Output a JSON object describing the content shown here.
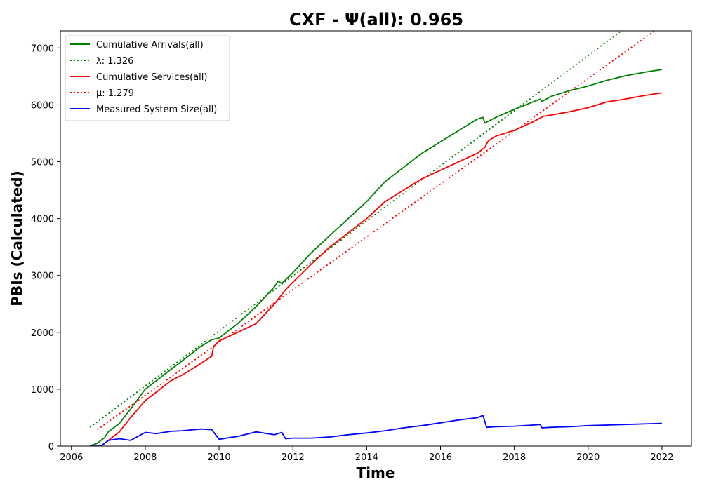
{
  "chart_data": {
    "type": "line",
    "title": "CXF -  Ψ(all): 0.965",
    "xlabel": "Time",
    "ylabel": "PBIs (Calculated)",
    "xlim": [
      2005.7,
      2022.8
    ],
    "ylim": [
      0,
      7300
    ],
    "x_ticks": [
      "2006",
      "2008",
      "2010",
      "2012",
      "2014",
      "2016",
      "2018",
      "2020",
      "2022"
    ],
    "y_ticks": [
      "0",
      "1000",
      "2000",
      "3000",
      "4000",
      "5000",
      "6000",
      "7000"
    ],
    "legend_position": "upper-left",
    "series": [
      {
        "name": "Cumulative Arrivals(all)",
        "style": "solid",
        "color": "#008000",
        "x": [
          2006.5,
          2006.7,
          2006.9,
          2007.0,
          2007.3,
          2007.6,
          2008.0,
          2008.3,
          2008.7,
          2009.0,
          2009.5,
          2009.8,
          2010.0,
          2010.5,
          2011.0,
          2011.5,
          2011.6,
          2011.7,
          2012.0,
          2012.5,
          2013.0,
          2013.5,
          2014.0,
          2014.5,
          2015.0,
          2015.5,
          2016.0,
          2016.5,
          2017.0,
          2017.15,
          2017.2,
          2017.5,
          2018.0,
          2018.5,
          2018.7,
          2018.75,
          2019.0,
          2019.5,
          2020.0,
          2020.5,
          2021.0,
          2021.5,
          2022.0
        ],
        "y": [
          0,
          50,
          150,
          250,
          400,
          650,
          1000,
          1150,
          1350,
          1500,
          1750,
          1870,
          1900,
          2150,
          2450,
          2800,
          2900,
          2860,
          3050,
          3400,
          3700,
          4000,
          4300,
          4650,
          4900,
          5150,
          5350,
          5550,
          5750,
          5780,
          5680,
          5780,
          5920,
          6050,
          6100,
          6060,
          6150,
          6250,
          6330,
          6430,
          6510,
          6570,
          6620
        ]
      },
      {
        "name": "λ: 1.326",
        "style": "dotted",
        "color": "#008000",
        "x": [
          2006.5,
          2020.9
        ],
        "y": [
          330,
          7300
        ]
      },
      {
        "name": "Cumulative Services(all)",
        "style": "solid",
        "color": "#ff0000",
        "x": [
          2006.8,
          2006.9,
          2007.0,
          2007.3,
          2007.6,
          2008.0,
          2008.3,
          2008.7,
          2009.0,
          2009.5,
          2009.8,
          2009.85,
          2010.0,
          2010.5,
          2011.0,
          2011.5,
          2011.8,
          2012.0,
          2012.5,
          2013.0,
          2013.5,
          2014.0,
          2014.5,
          2015.0,
          2015.5,
          2016.0,
          2016.5,
          2017.0,
          2017.2,
          2017.3,
          2017.5,
          2018.0,
          2018.5,
          2018.8,
          2019.0,
          2019.5,
          2020.0,
          2020.5,
          2021.0,
          2021.5,
          2022.0
        ],
        "y": [
          0,
          50,
          100,
          250,
          500,
          800,
          950,
          1150,
          1250,
          1450,
          1580,
          1750,
          1850,
          2000,
          2150,
          2500,
          2750,
          2880,
          3200,
          3500,
          3750,
          4000,
          4300,
          4500,
          4700,
          4850,
          5000,
          5150,
          5250,
          5370,
          5450,
          5550,
          5700,
          5800,
          5820,
          5880,
          5950,
          6050,
          6100,
          6160,
          6210
        ]
      },
      {
        "name": "μ: 1.279",
        "style": "dotted",
        "color": "#ff0000",
        "x": [
          2006.7,
          2021.8
        ],
        "y": [
          290,
          7300
        ]
      },
      {
        "name": "Measured System Size(all)",
        "style": "solid",
        "color": "#0000ff",
        "x": [
          2006.5,
          2006.8,
          2007.0,
          2007.3,
          2007.6,
          2008.0,
          2008.3,
          2008.7,
          2009.0,
          2009.5,
          2009.8,
          2010.0,
          2010.5,
          2011.0,
          2011.5,
          2011.7,
          2011.8,
          2012.0,
          2012.5,
          2013.0,
          2013.5,
          2014.0,
          2014.5,
          2015.0,
          2015.5,
          2016.0,
          2016.5,
          2017.0,
          2017.15,
          2017.25,
          2017.5,
          2018.0,
          2018.5,
          2018.7,
          2018.75,
          2019.0,
          2019.5,
          2020.0,
          2020.5,
          2021.0,
          2021.5,
          2022.0
        ],
        "y": [
          0,
          0,
          100,
          130,
          100,
          240,
          220,
          260,
          270,
          300,
          290,
          120,
          170,
          250,
          200,
          240,
          130,
          140,
          140,
          160,
          200,
          230,
          270,
          320,
          360,
          410,
          460,
          500,
          540,
          330,
          340,
          350,
          370,
          380,
          320,
          330,
          340,
          360,
          370,
          380,
          390,
          400
        ]
      }
    ]
  }
}
